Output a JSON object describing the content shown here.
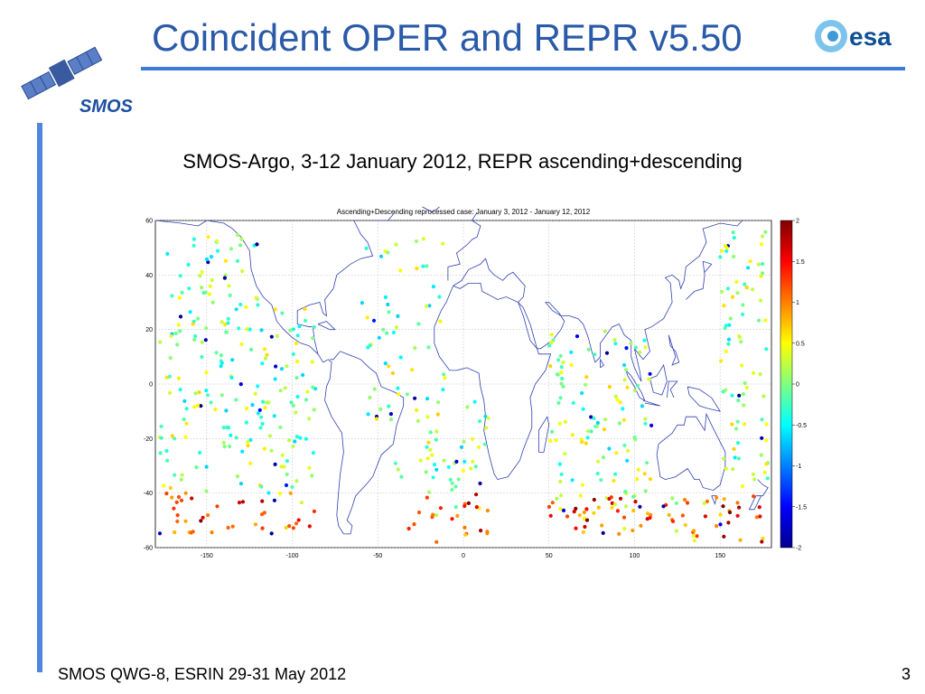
{
  "slide": {
    "title": "Coincident OPER and REPR v5.50",
    "subtitle": "SMOS-Argo, 3-12 January 2012, REPR ascending+descending",
    "footer": "SMOS QWG-8, ESRIN 29-31 May 2012",
    "page_number": "3",
    "logos": {
      "left": "SMOS",
      "right": "esa"
    },
    "colors": {
      "title": "#2a5aa8",
      "accent_bar": "#4f86e0",
      "rule": "#3a7bd5",
      "coastline": "#3040b0"
    }
  },
  "chart_data": {
    "type": "scatter",
    "title": "Ascending+Descending reprocessed case: January 3, 2012 - January 12, 2012",
    "xlim": [
      -180,
      180
    ],
    "ylim": [
      -60,
      60
    ],
    "x_ticks": [
      -150,
      -100,
      -50,
      0,
      50,
      100,
      150
    ],
    "y_ticks": [
      -60,
      -40,
      -20,
      0,
      20,
      40,
      60
    ],
    "grid": true,
    "colorbar": {
      "range": [
        -2,
        2
      ],
      "ticks": [
        2,
        1.5,
        1,
        0.5,
        0,
        -0.5,
        -1,
        -1.5,
        -2
      ],
      "colormap": "jet",
      "position": "right"
    }
  }
}
